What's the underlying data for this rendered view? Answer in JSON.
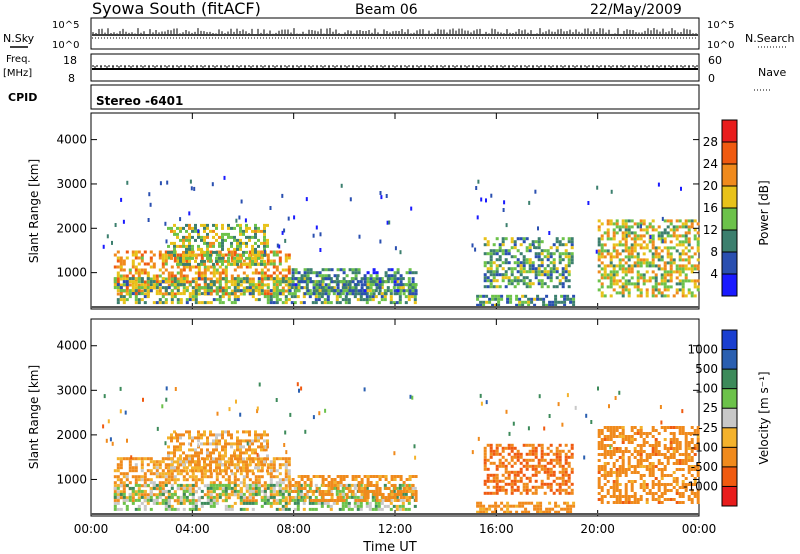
{
  "header": {
    "title": "Syowa South (fitACF)",
    "beam": "Beam 06",
    "date": "22/May/2009"
  },
  "top_panels": {
    "nsky_label": "N.Sky",
    "nsearch_label": "N.Search",
    "noise_tick_high": "10^5",
    "noise_tick_low": "10^0",
    "freq_label_line1": "Freq.",
    "freq_label_line2": "[MHz]",
    "freq_tick_high": "18",
    "freq_tick_low": "8",
    "nave_label": "Nave",
    "nave_tick_high": "60",
    "nave_tick_low": "0",
    "cpid_label": "CPID",
    "cpid_value": "Stereo -6401"
  },
  "colors": {
    "power_scale": [
      "#1a1aff",
      "#2a4fb0",
      "#3c7f6e",
      "#6cc24a",
      "#e8c21a",
      "#f08a1c",
      "#f05a10",
      "#e81c1c"
    ],
    "velocity_scale": [
      "#e81c1c",
      "#f05a10",
      "#f08a1c",
      "#f4b22c",
      "#c8c8c8",
      "#6cc24a",
      "#3c8a5a",
      "#2a5fb0",
      "#1a3fd0"
    ]
  },
  "chart_data": [
    {
      "type": "heatmap",
      "name": "power",
      "xlabel": "",
      "ylabel": "Slant Range [km]",
      "x_ticks": [
        "00:00",
        "04:00",
        "08:00",
        "12:00",
        "16:00",
        "20:00",
        "00:00"
      ],
      "y_ticks": [
        1000,
        2000,
        3000,
        4000
      ],
      "xlim_hours": [
        0,
        24
      ],
      "ylim_km": [
        180,
        4600
      ],
      "colorbar_label": "Power [dB]",
      "colorbar_ticks": [
        "4",
        "8",
        "12",
        "16",
        "20",
        "24",
        "28"
      ],
      "colorbar_range": [
        0,
        30
      ],
      "patches": [
        {
          "t0": 0.9,
          "t1": 7.8,
          "r0": 500,
          "r1": 1500,
          "v": 20
        },
        {
          "t0": 3.0,
          "t1": 7.0,
          "r0": 1200,
          "r1": 2100,
          "v": 14
        },
        {
          "t0": 0.9,
          "t1": 12.8,
          "r0": 300,
          "r1": 900,
          "v": 12
        },
        {
          "t0": 7.8,
          "t1": 12.8,
          "r0": 500,
          "r1": 1100,
          "v": 9
        },
        {
          "t0": 15.2,
          "t1": 19.0,
          "r0": 250,
          "r1": 500,
          "v": 10
        },
        {
          "t0": 15.5,
          "t1": 19.0,
          "r0": 700,
          "r1": 1800,
          "v": 11
        },
        {
          "t0": 20.0,
          "t1": 24.0,
          "r0": 500,
          "r1": 2200,
          "v": 16
        }
      ]
    },
    {
      "type": "heatmap",
      "name": "velocity",
      "xlabel": "Time UT",
      "ylabel": "Slant Range [km]",
      "x_ticks": [
        "00:00",
        "04:00",
        "08:00",
        "12:00",
        "16:00",
        "20:00",
        "00:00"
      ],
      "y_ticks": [
        1000,
        2000,
        3000,
        4000
      ],
      "xlim_hours": [
        0,
        24
      ],
      "ylim_km": [
        180,
        4600
      ],
      "colorbar_label": "Velocity [m s⁻¹]",
      "colorbar_ticks": [
        "-1000",
        "-500",
        "-100",
        "-25",
        "25",
        "100",
        "500",
        "1000"
      ],
      "patches": [
        {
          "t0": 0.9,
          "t1": 7.8,
          "r0": 500,
          "r1": 1500,
          "v": -100
        },
        {
          "t0": 3.0,
          "t1": 7.0,
          "r0": 1200,
          "r1": 2100,
          "v": -100
        },
        {
          "t0": 0.9,
          "t1": 12.8,
          "r0": 300,
          "r1": 900,
          "v": 50
        },
        {
          "t0": 7.8,
          "t1": 12.8,
          "r0": 500,
          "r1": 1100,
          "v": -200
        },
        {
          "t0": 15.2,
          "t1": 19.0,
          "r0": 250,
          "r1": 500,
          "v": -200
        },
        {
          "t0": 15.5,
          "t1": 19.0,
          "r0": 700,
          "r1": 1800,
          "v": -500
        },
        {
          "t0": 20.0,
          "t1": 24.0,
          "r0": 500,
          "r1": 2200,
          "v": -300
        }
      ]
    }
  ]
}
